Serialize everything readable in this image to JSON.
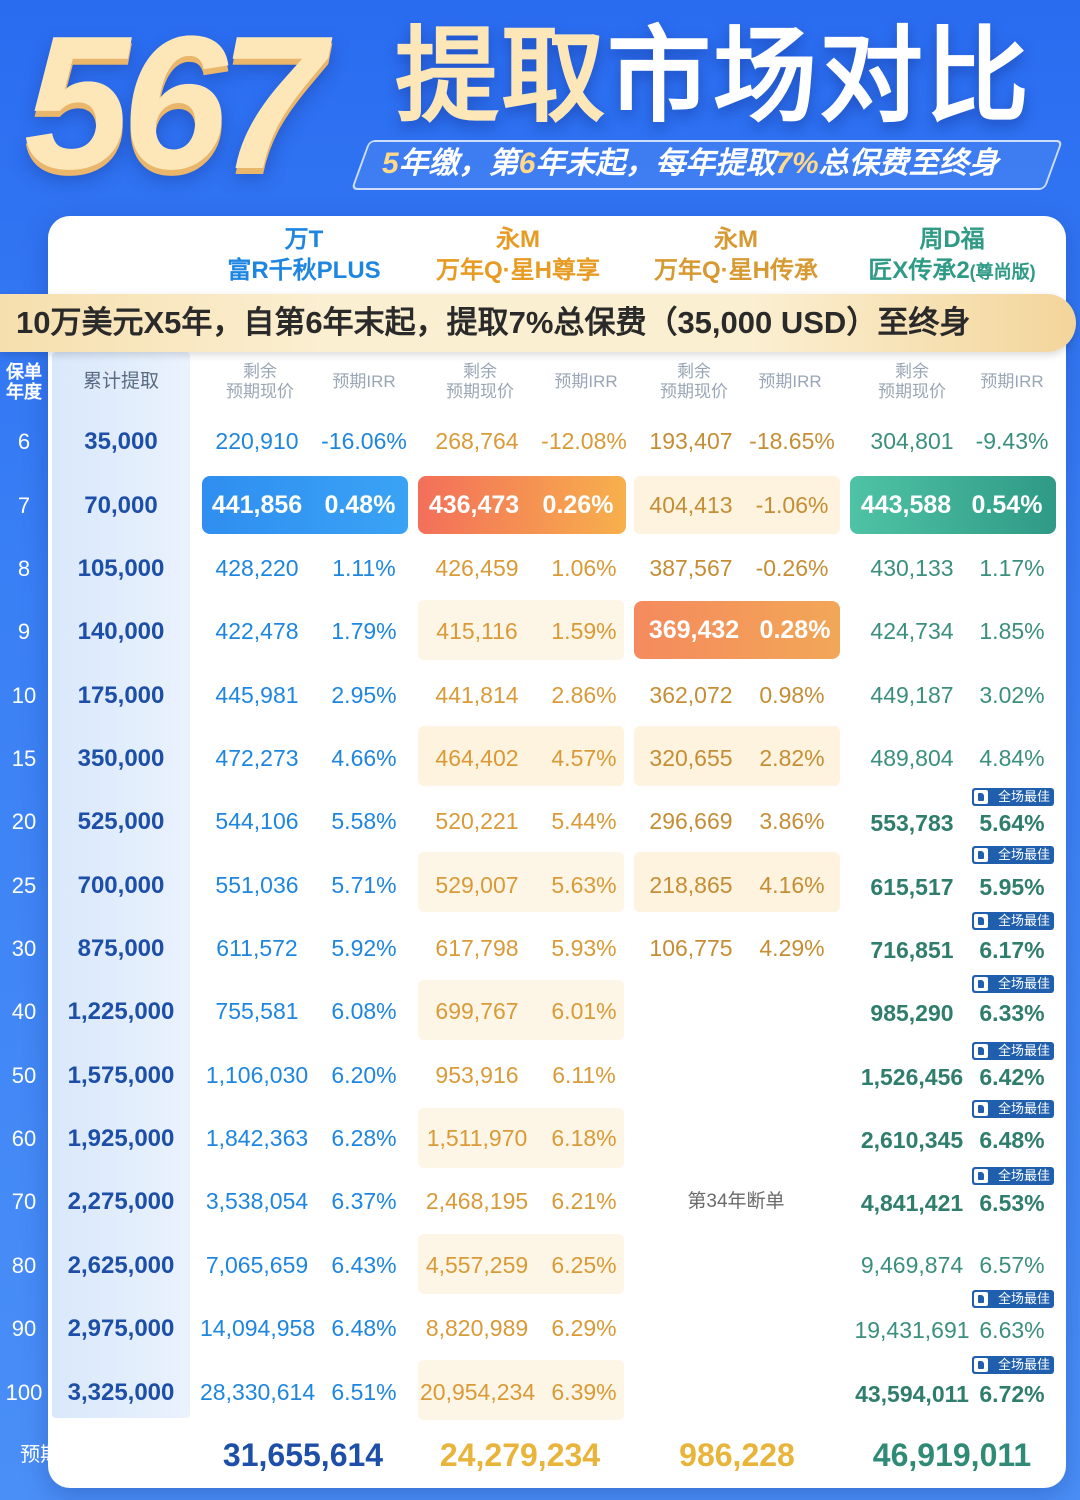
{
  "title": {
    "big": "567",
    "cn_part1": "提取",
    "cn_part2": "市场对比"
  },
  "subtitle": {
    "p1": "5",
    "p2": "年缴，第",
    "p3": "6",
    "p4": "年末起，每年提取",
    "p5": "7%",
    "p6": "总保费至终身"
  },
  "products": [
    {
      "line1": "万T",
      "line2": "富R千秋PLUS",
      "line2_small": ""
    },
    {
      "line1": "永M",
      "line2": "万年Q·星H尊享",
      "line2_small": ""
    },
    {
      "line1": "永M",
      "line2": "万年Q·星H传承",
      "line2_small": ""
    },
    {
      "line1": "周D福",
      "line2": "匠X传承2",
      "line2_small": "(尊尚版)"
    }
  ],
  "banner": "10万美元X5年，自第6年末起，提取7%总保费（35,000 USD）至终身",
  "headers": {
    "age_l1": "保单",
    "age_l2": "年度",
    "cumulative": "累计提取",
    "value_l1": "剩余",
    "value_l2": "预期现价",
    "irr": "预期IRR"
  },
  "badge_text": "全场最佳",
  "lapse_note": "第34年断单",
  "rows": [
    {
      "age": "6",
      "cum": "35,000",
      "p1v": "220,910",
      "p1i": "-16.06%",
      "p2v": "268,764",
      "p2i": "-12.08%",
      "p3v": "193,407",
      "p3i": "-18.65%",
      "p4v": "304,801",
      "p4i": "-9.43%"
    },
    {
      "age": "7",
      "cum": "70,000",
      "p1v": "441,856",
      "p1i": "0.48%",
      "p2v": "436,473",
      "p2i": "0.26%",
      "p3v": "404,413",
      "p3i": "-1.06%",
      "p4v": "443,588",
      "p4i": "0.54%"
    },
    {
      "age": "8",
      "cum": "105,000",
      "p1v": "428,220",
      "p1i": "1.11%",
      "p2v": "426,459",
      "p2i": "1.06%",
      "p3v": "387,567",
      "p3i": "-0.26%",
      "p4v": "430,133",
      "p4i": "1.17%"
    },
    {
      "age": "9",
      "cum": "140,000",
      "p1v": "422,478",
      "p1i": "1.79%",
      "p2v": "415,116",
      "p2i": "1.59%",
      "p3v": "369,432",
      "p3i": "0.28%",
      "p4v": "424,734",
      "p4i": "1.85%"
    },
    {
      "age": "10",
      "cum": "175,000",
      "p1v": "445,981",
      "p1i": "2.95%",
      "p2v": "441,814",
      "p2i": "2.86%",
      "p3v": "362,072",
      "p3i": "0.98%",
      "p4v": "449,187",
      "p4i": "3.02%"
    },
    {
      "age": "15",
      "cum": "350,000",
      "p1v": "472,273",
      "p1i": "4.66%",
      "p2v": "464,402",
      "p2i": "4.57%",
      "p3v": "320,655",
      "p3i": "2.82%",
      "p4v": "489,804",
      "p4i": "4.84%"
    },
    {
      "age": "20",
      "cum": "525,000",
      "p1v": "544,106",
      "p1i": "5.58%",
      "p2v": "520,221",
      "p2i": "5.44%",
      "p3v": "296,669",
      "p3i": "3.86%",
      "p4v": "553,783",
      "p4i": "5.64%"
    },
    {
      "age": "25",
      "cum": "700,000",
      "p1v": "551,036",
      "p1i": "5.71%",
      "p2v": "529,007",
      "p2i": "5.63%",
      "p3v": "218,865",
      "p3i": "4.16%",
      "p4v": "615,517",
      "p4i": "5.95%"
    },
    {
      "age": "30",
      "cum": "875,000",
      "p1v": "611,572",
      "p1i": "5.92%",
      "p2v": "617,798",
      "p2i": "5.93%",
      "p3v": "106,775",
      "p3i": "4.29%",
      "p4v": "716,851",
      "p4i": "6.17%"
    },
    {
      "age": "40",
      "cum": "1,225,000",
      "p1v": "755,581",
      "p1i": "6.08%",
      "p2v": "699,767",
      "p2i": "6.01%",
      "p3v": "",
      "p3i": "",
      "p4v": "985,290",
      "p4i": "6.33%"
    },
    {
      "age": "50",
      "cum": "1,575,000",
      "p1v": "1,106,030",
      "p1i": "6.20%",
      "p2v": "953,916",
      "p2i": "6.11%",
      "p3v": "",
      "p3i": "",
      "p4v": "1,526,456",
      "p4i": "6.42%"
    },
    {
      "age": "60",
      "cum": "1,925,000",
      "p1v": "1,842,363",
      "p1i": "6.28%",
      "p2v": "1,511,970",
      "p2i": "6.18%",
      "p3v": "",
      "p3i": "",
      "p4v": "2,610,345",
      "p4i": "6.48%"
    },
    {
      "age": "70",
      "cum": "2,275,000",
      "p1v": "3,538,054",
      "p1i": "6.37%",
      "p2v": "2,468,195",
      "p2i": "6.21%",
      "p3v": "",
      "p3i": "",
      "p4v": "4,841,421",
      "p4i": "6.53%"
    },
    {
      "age": "80",
      "cum": "2,625,000",
      "p1v": "7,065,659",
      "p1i": "6.43%",
      "p2v": "4,557,259",
      "p2i": "6.25%",
      "p3v": "",
      "p3i": "",
      "p4v": "9,469,874",
      "p4i": "6.57%"
    },
    {
      "age": "90",
      "cum": "2,975,000",
      "p1v": "14,094,958",
      "p1i": "6.48%",
      "p2v": "8,820,989",
      "p2i": "6.29%",
      "p3v": "",
      "p3i": "",
      "p4v": "19,431,691",
      "p4i": "6.63%"
    },
    {
      "age": "100",
      "cum": "3,325,000",
      "p1v": "28,330,614",
      "p1i": "6.51%",
      "p2v": "20,954,234",
      "p2i": "6.39%",
      "p3v": "",
      "p3i": "",
      "p4v": "43,594,011",
      "p4i": "6.72%"
    }
  ],
  "totals": {
    "label": "预期退保+总提取",
    "p1": "31,655,614",
    "p2": "24,279,234",
    "p3": "986,228",
    "p4": "46,919,011"
  },
  "colors": {
    "blue": "#1f86e0",
    "orange": "#f08a4b",
    "green": "#2f9a86",
    "navy": "#1d4fa8"
  }
}
